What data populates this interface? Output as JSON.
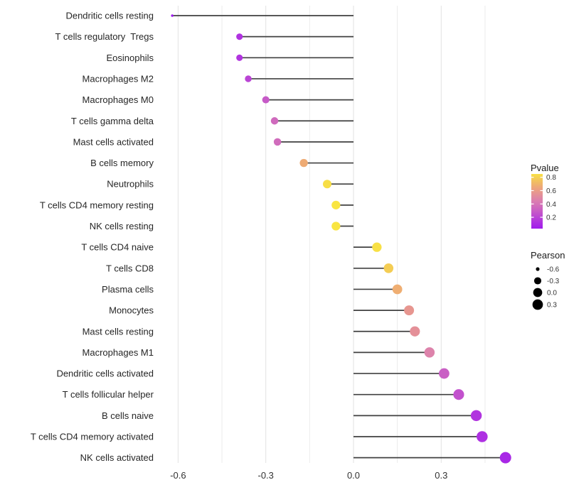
{
  "chart_data": {
    "type": "lollipop",
    "title": "",
    "xlabel": "",
    "ylabel": "",
    "xlim": [
      -0.668,
      0.57
    ],
    "x_ticks": [
      -0.6,
      -0.3,
      0.0,
      0.3
    ],
    "x_tick_labels": [
      "-0.6",
      "-0.3",
      "0.0",
      "0.3"
    ],
    "x_minor_ticks": [
      -0.45,
      -0.15,
      0.15,
      0.45
    ],
    "grid": "vertical-only",
    "baseline_x": 0.0,
    "rows": [
      {
        "label": "Dendritic cells resting",
        "pearson": -0.62,
        "pvalue": 0.02
      },
      {
        "label": "T cells regulatory  Tregs",
        "pearson": -0.39,
        "pvalue": 0.13
      },
      {
        "label": "Eosinophils",
        "pearson": -0.39,
        "pvalue": 0.14
      },
      {
        "label": "Macrophages M2",
        "pearson": -0.36,
        "pvalue": 0.2
      },
      {
        "label": "Macrophages M0",
        "pearson": -0.3,
        "pvalue": 0.28
      },
      {
        "label": "T cells gamma delta",
        "pearson": -0.27,
        "pvalue": 0.35
      },
      {
        "label": "Mast cells activated",
        "pearson": -0.26,
        "pvalue": 0.36
      },
      {
        "label": "B cells memory",
        "pearson": -0.17,
        "pvalue": 0.67
      },
      {
        "label": "Neutrophils",
        "pearson": -0.09,
        "pvalue": 0.84
      },
      {
        "label": "T cells CD4 memory resting",
        "pearson": -0.06,
        "pvalue": 0.87
      },
      {
        "label": "NK cells resting",
        "pearson": -0.06,
        "pvalue": 0.87
      },
      {
        "label": "T cells CD4 naive",
        "pearson": 0.08,
        "pvalue": 0.85
      },
      {
        "label": "T cells CD8",
        "pearson": 0.12,
        "pvalue": 0.78
      },
      {
        "label": "Plasma cells",
        "pearson": 0.15,
        "pvalue": 0.68
      },
      {
        "label": "Monocytes",
        "pearson": 0.19,
        "pvalue": 0.57
      },
      {
        "label": "Mast cells resting",
        "pearson": 0.21,
        "pvalue": 0.54
      },
      {
        "label": "Macrophages M1",
        "pearson": 0.26,
        "pvalue": 0.47
      },
      {
        "label": "Dendritic cells activated",
        "pearson": 0.31,
        "pvalue": 0.3
      },
      {
        "label": "T cells follicular helper",
        "pearson": 0.36,
        "pvalue": 0.25
      },
      {
        "label": "B cells naive",
        "pearson": 0.42,
        "pvalue": 0.14
      },
      {
        "label": "T cells CD4 memory activated",
        "pearson": 0.44,
        "pvalue": 0.12
      },
      {
        "label": "NK cells activated",
        "pearson": 0.52,
        "pvalue": 0.08
      }
    ],
    "size_scale": {
      "domain": [
        -0.62,
        0.52
      ],
      "radius_range": [
        1.75,
        8
      ]
    }
  },
  "legend": {
    "pvalue": {
      "title": "Pvalue",
      "domain": [
        0.03,
        0.85
      ],
      "ticks": [
        0.8,
        0.6,
        0.4,
        0.2
      ],
      "tick_labels": [
        "0.8",
        "0.6",
        "0.4",
        "0.2"
      ]
    },
    "pearson": {
      "title": "Pearson",
      "entries": [
        {
          "label": "-0.6",
          "value": -0.6
        },
        {
          "label": "-0.3",
          "value": -0.3
        },
        {
          "label": "0.0",
          "value": 0.0
        },
        {
          "label": "0.3",
          "value": 0.3
        }
      ]
    }
  },
  "colors": {
    "gradient_stops": [
      [
        0.0,
        "#9B16F0"
      ],
      [
        0.15,
        "#B336DE"
      ],
      [
        0.3,
        "#C95FC4"
      ],
      [
        0.45,
        "#DB7FB0"
      ],
      [
        0.6,
        "#EA9C88"
      ],
      [
        0.7,
        "#F0B26C"
      ],
      [
        0.8,
        "#F5D44E"
      ],
      [
        0.9,
        "#FAEC3B"
      ]
    ],
    "stem": "#404040",
    "grid_major": "#E2E2E2",
    "grid_minor": "#ECECEC",
    "legend_dot": "#000000",
    "background": "#FFFFFF"
  }
}
